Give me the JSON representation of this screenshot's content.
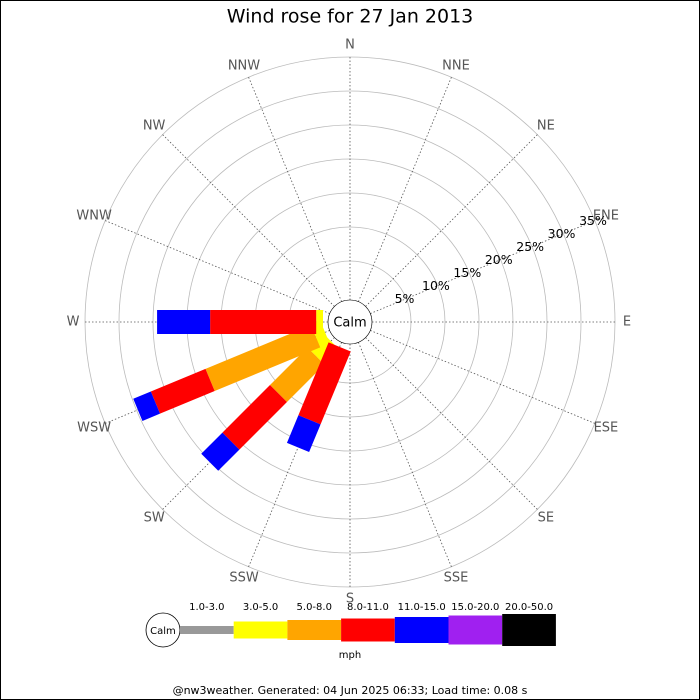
{
  "chart_data": {
    "type": "wind_rose",
    "title": "Wind rose for 27 Jan 2013",
    "categories": [
      "N",
      "NNE",
      "NE",
      "ENE",
      "E",
      "ESE",
      "SE",
      "SSE",
      "S",
      "SSW",
      "SW",
      "WSW",
      "W",
      "WNW",
      "NW",
      "NNW"
    ],
    "calm_label": "Calm",
    "rlim": [
      0,
      35
    ],
    "rticks": [
      {
        "value": 5,
        "label": "5%"
      },
      {
        "value": 10,
        "label": "10%"
      },
      {
        "value": 15,
        "label": "15%"
      },
      {
        "value": 20,
        "label": "20%"
      },
      {
        "value": 25,
        "label": "25%"
      },
      {
        "value": 30,
        "label": "30%"
      },
      {
        "value": 35,
        "label": "35%"
      }
    ],
    "series": [
      {
        "name": "1.0-3.0",
        "color": "#999999",
        "values": [
          0,
          0,
          0,
          0,
          0,
          0,
          0,
          0,
          0,
          0,
          0,
          0,
          0,
          0,
          0,
          0
        ]
      },
      {
        "name": "3.0-5.0",
        "color": "#ffff00",
        "values": [
          0,
          0,
          0,
          0,
          0,
          0,
          0,
          0,
          0,
          0,
          3.1,
          1.5,
          1.0,
          0,
          0,
          0
        ]
      },
      {
        "name": "5.0-8.0",
        "color": "#ffa500",
        "values": [
          0,
          0,
          0,
          0,
          0,
          0,
          0,
          0,
          0,
          0,
          7.8,
          16.8,
          0,
          0,
          0,
          0
        ]
      },
      {
        "name": "8.0-11.0",
        "color": "#ff0000",
        "values": [
          0,
          0,
          0,
          0,
          0,
          0,
          0,
          0,
          0,
          11.6,
          9.9,
          8.7,
          15.6,
          0,
          0,
          0
        ]
      },
      {
        "name": "11.0-15.0",
        "color": "#0000ff",
        "values": [
          0,
          0,
          0,
          0,
          0,
          0,
          0,
          0,
          0,
          4.4,
          4.4,
          2.8,
          7.8,
          0,
          0,
          0
        ]
      },
      {
        "name": "15.0-20.0",
        "color": "#a020f0",
        "values": [
          0,
          0,
          0,
          0,
          0,
          0,
          0,
          0,
          0,
          0,
          0,
          0,
          0,
          0,
          0,
          0
        ]
      },
      {
        "name": "20.0-50.0",
        "color": "#000000",
        "values": [
          0,
          0,
          0,
          0,
          0,
          0,
          0,
          0,
          0,
          0,
          0,
          0,
          0,
          0,
          0,
          0
        ]
      }
    ],
    "legend_unit": "mph",
    "footer": "@nw3weather. Generated: 04 Jun 2025 06:33; Load time: 0.08 s"
  }
}
